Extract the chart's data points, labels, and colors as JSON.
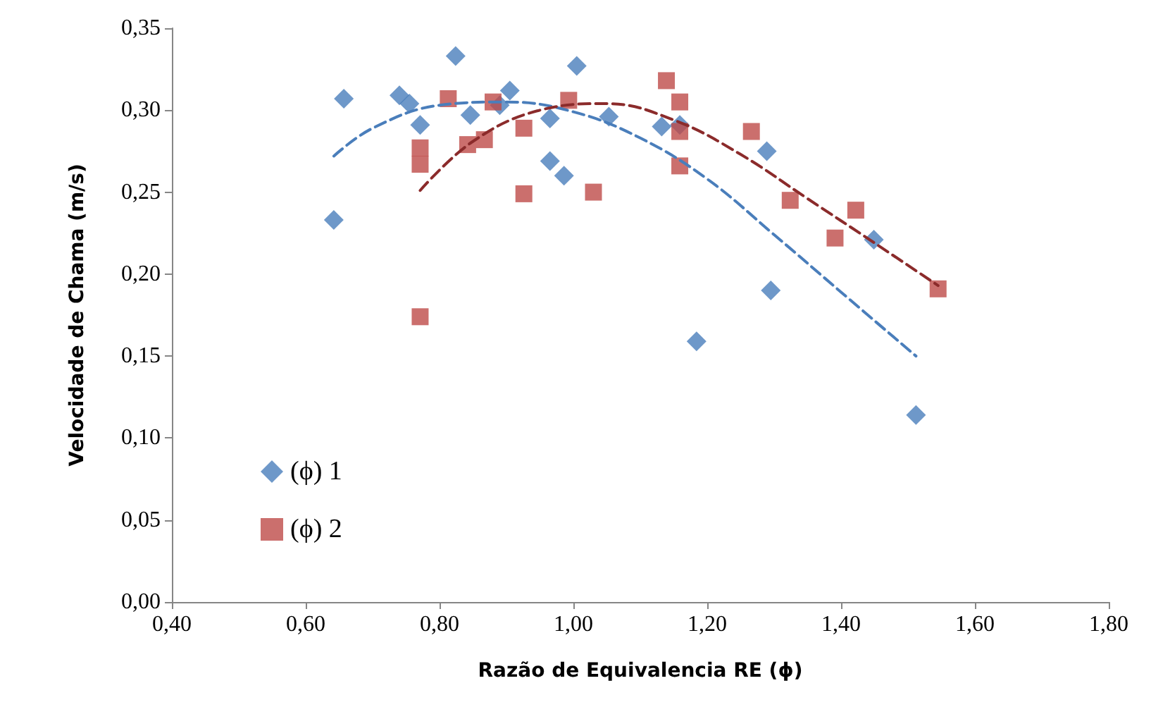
{
  "chart_data": {
    "type": "scatter",
    "xlabel": "Razão de Equivalencia RE (ϕ)",
    "ylabel": "Velocidade de Chama (m/s)",
    "xlim": [
      0.4,
      1.8
    ],
    "xticks": [
      {
        "value": 0.4,
        "label": "0,40"
      },
      {
        "value": 0.6,
        "label": "0,60"
      },
      {
        "value": 0.8,
        "label": "0,80"
      },
      {
        "value": 1.0,
        "label": "1,00"
      },
      {
        "value": 1.2,
        "label": "1,20"
      },
      {
        "value": 1.4,
        "label": "1,40"
      },
      {
        "value": 1.6,
        "label": "1,60"
      },
      {
        "value": 1.8,
        "label": "1,80"
      }
    ],
    "ylim": [
      0,
      0.35
    ],
    "yticks": [
      {
        "value": 0,
        "label": "0,00"
      },
      {
        "value": 0.05,
        "label": "0,05"
      },
      {
        "value": 0.1,
        "label": "0,10"
      },
      {
        "value": 0.15,
        "label": "0,15"
      },
      {
        "value": 0.2,
        "label": "0,20"
      },
      {
        "value": 0.25,
        "label": "0,25"
      },
      {
        "value": 0.3,
        "label": "0,30"
      },
      {
        "value": 0.35,
        "label": "0,35"
      }
    ],
    "grid": false,
    "legend": "bottom left",
    "series": [
      {
        "name": "(ϕ) 1",
        "marker": "diamond",
        "color": "#4a7ebb",
        "x": [
          0.642,
          0.657,
          0.74,
          0.755,
          0.771,
          0.824,
          0.846,
          0.89,
          0.905,
          0.965,
          0.965,
          0.986,
          1.005,
          1.053,
          1.132,
          1.159,
          1.184,
          1.289,
          1.295,
          1.449,
          1.512
        ],
        "values": [
          0.233,
          0.307,
          0.309,
          0.304,
          0.291,
          0.333,
          0.297,
          0.303,
          0.312,
          0.295,
          0.269,
          0.26,
          0.327,
          0.296,
          0.29,
          0.291,
          0.159,
          0.275,
          0.19,
          0.221,
          0.114
        ]
      },
      {
        "name": "(ϕ) 2",
        "marker": "square",
        "color": "#be4b48",
        "x": [
          0.771,
          0.771,
          0.771,
          0.813,
          0.842,
          0.867,
          0.88,
          0.926,
          0.926,
          0.993,
          1.03,
          1.139,
          1.159,
          1.159,
          1.159,
          1.266,
          1.324,
          1.391,
          1.422,
          1.545
        ],
        "values": [
          0.277,
          0.267,
          0.174,
          0.307,
          0.279,
          0.282,
          0.305,
          0.289,
          0.249,
          0.306,
          0.25,
          0.318,
          0.305,
          0.287,
          0.266,
          0.287,
          0.245,
          0.222,
          0.239,
          0.191
        ]
      },
      {
        "type": "line",
        "marker": "none",
        "line_style": "dashed",
        "color": "#4a7ebb",
        "x": [
          0.642,
          0.7,
          0.8,
          0.9,
          1.0,
          1.1,
          1.2,
          1.3,
          1.4,
          1.512
        ],
        "values": [
          0.272,
          0.289,
          0.303,
          0.305,
          0.299,
          0.283,
          0.258,
          0.224,
          0.189,
          0.15
        ]
      },
      {
        "type": "line",
        "marker": "none",
        "line_style": "dashed",
        "color": "#8b2b2b",
        "x": [
          0.771,
          0.85,
          0.95,
          1.05,
          1.15,
          1.25,
          1.35,
          1.45,
          1.545
        ],
        "values": [
          0.251,
          0.281,
          0.3,
          0.304,
          0.294,
          0.273,
          0.246,
          0.219,
          0.193
        ]
      }
    ]
  }
}
